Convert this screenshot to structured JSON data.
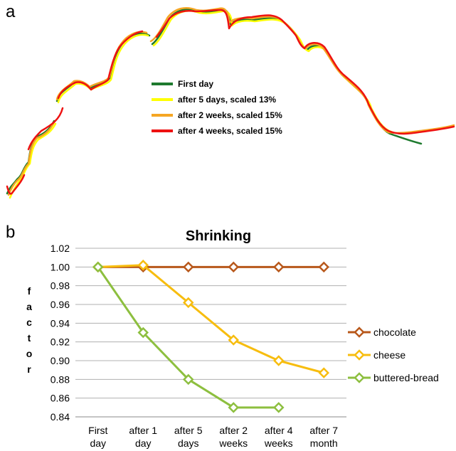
{
  "panels": {
    "a": {
      "letter": "a",
      "legend": [
        {
          "label": "First day",
          "color": "#1e7a2e"
        },
        {
          "label": "after 5 days, scaled 13%",
          "color": "#ffff00"
        },
        {
          "label": "after 2 weeks, scaled 15%",
          "color": "#f5a623"
        },
        {
          "label": "after 4 weeks, scaled 15%",
          "color": "#ee1111"
        }
      ]
    },
    "b": {
      "letter": "b"
    }
  },
  "chart_data": {
    "type": "line",
    "title": "Shrinking",
    "xlabel": "",
    "ylabel": "factor",
    "categories": [
      "First day",
      "after 1 day",
      "after 5 days",
      "after 2 weeks",
      "after 4 weeks",
      "after 7 month"
    ],
    "ylim": [
      0.84,
      1.02
    ],
    "yticks": [
      "0.84",
      "0.86",
      "0.88",
      "0.90",
      "0.92",
      "0.94",
      "0.96",
      "0.98",
      "1.00",
      "1.02"
    ],
    "grid": true,
    "legend_position": "right",
    "series": [
      {
        "name": "chocolate",
        "color": "#b8581b",
        "values": [
          1.0,
          1.0,
          1.0,
          1.0,
          1.0,
          1.0
        ]
      },
      {
        "name": "cheese",
        "color": "#f7bd0f",
        "values": [
          1.0,
          1.002,
          0.962,
          0.922,
          0.9,
          0.887
        ]
      },
      {
        "name": "buttered-bread",
        "color": "#8dbf3f",
        "values": [
          1.0,
          0.93,
          0.88,
          0.85,
          0.85,
          null
        ]
      }
    ]
  }
}
